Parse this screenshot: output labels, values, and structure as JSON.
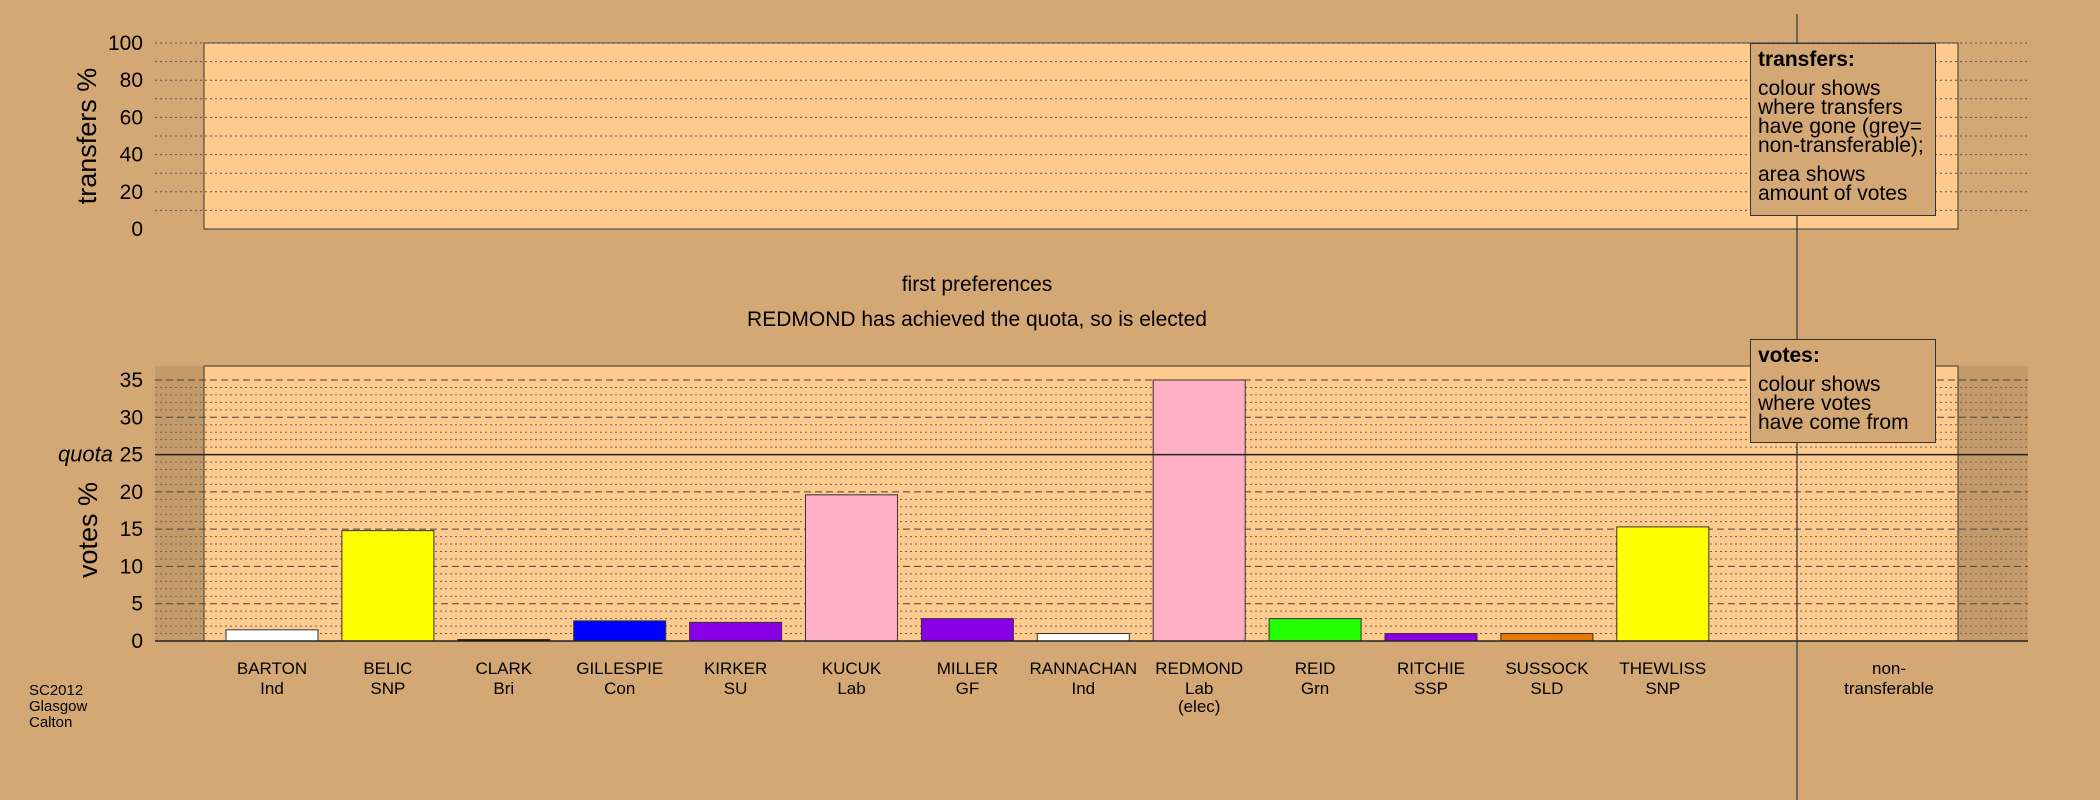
{
  "chart_data": [
    {
      "type": "bar",
      "ylabel": "transfers %",
      "ylim": [
        0,
        100
      ],
      "yticks": [
        0,
        20,
        40,
        60,
        80,
        100
      ],
      "categories": [],
      "values": [],
      "legend": {
        "title": "transfers:",
        "lines": [
          "colour shows",
          "where transfers",
          "have gone (grey=",
          "non-transferable);"
        ],
        "lines2": [
          "area shows",
          "amount of votes"
        ]
      }
    },
    {
      "type": "bar",
      "title": "first preferences",
      "subtitle": "REDMOND has achieved the quota, so is elected",
      "ylabel": "votes %",
      "ylim": [
        0,
        35
      ],
      "yticks": [
        0,
        5,
        10,
        15,
        20,
        25,
        30,
        35
      ],
      "quota": {
        "label": "quota",
        "value": 25
      },
      "categories": [
        {
          "name": "BARTON",
          "party": "Ind",
          "extra": ""
        },
        {
          "name": "BELIC",
          "party": "SNP",
          "extra": ""
        },
        {
          "name": "CLARK",
          "party": "Bri",
          "extra": ""
        },
        {
          "name": "GILLESPIE",
          "party": "Con",
          "extra": ""
        },
        {
          "name": "KIRKER",
          "party": "SU",
          "extra": ""
        },
        {
          "name": "KUCUK",
          "party": "Lab",
          "extra": ""
        },
        {
          "name": "MILLER",
          "party": "GF",
          "extra": ""
        },
        {
          "name": "RANNACHAN",
          "party": "Ind",
          "extra": ""
        },
        {
          "name": "REDMOND",
          "party": "Lab",
          "extra": "(elec)"
        },
        {
          "name": "REID",
          "party": "Grn",
          "extra": ""
        },
        {
          "name": "RITCHIE",
          "party": "SSP",
          "extra": ""
        },
        {
          "name": "SUSSOCK",
          "party": "SLD",
          "extra": ""
        },
        {
          "name": "THEWLISS",
          "party": "SNP",
          "extra": ""
        }
      ],
      "values": [
        1.5,
        14.8,
        0.2,
        2.7,
        2.5,
        19.6,
        3.0,
        1.0,
        35.0,
        3.0,
        1.0,
        1.0,
        15.3
      ],
      "colors": [
        "#ffffff",
        "#ffff00",
        "#000000",
        "#0000ff",
        "#8a00e6",
        "#ffb0c4",
        "#8a00e6",
        "#ffffff",
        "#ffb0c4",
        "#22ff00",
        "#8a00e6",
        "#e8780a",
        "#ffff00"
      ],
      "nontransferable": {
        "line1": "non-",
        "line2": "transferable"
      },
      "legend": {
        "title": "votes:",
        "lines": [
          "colour shows",
          "where votes",
          "have come from"
        ]
      }
    }
  ],
  "footer": [
    "SC2012",
    "Glasgow",
    "Calton"
  ]
}
